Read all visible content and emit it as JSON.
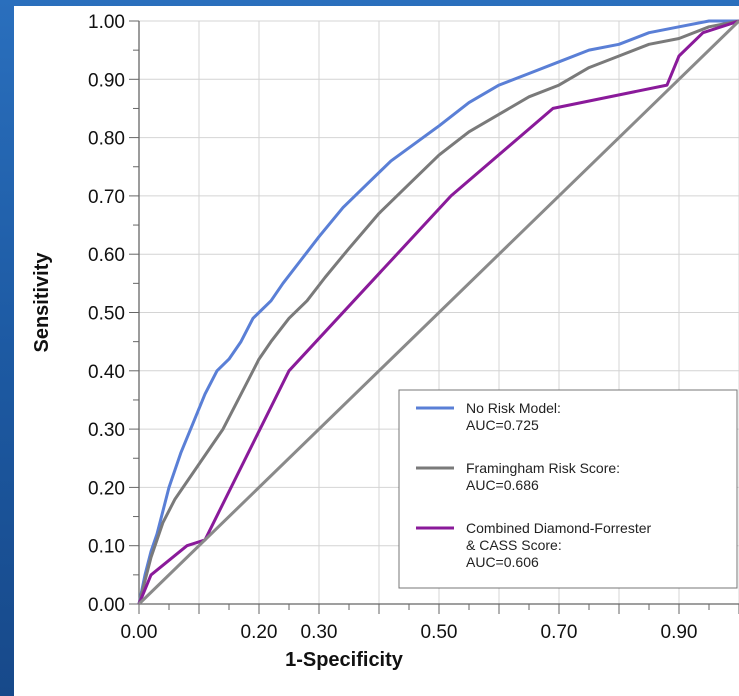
{
  "chart_data": {
    "type": "line",
    "xlabel": "1-Specificity",
    "ylabel": "Sensitivity",
    "xlim": [
      0,
      1
    ],
    "ylim": [
      0,
      1
    ],
    "x_tick_labels": [
      {
        "x": 0.0,
        "label": "0.00"
      },
      {
        "x": 0.2,
        "label": "0.20"
      },
      {
        "x": 0.3,
        "label": "0.30"
      },
      {
        "x": 0.5,
        "label": "0.50"
      },
      {
        "x": 0.7,
        "label": "0.70"
      },
      {
        "x": 0.9,
        "label": "0.90"
      }
    ],
    "y_tick_labels": [
      {
        "y": 0.0,
        "label": "0.00"
      },
      {
        "y": 0.1,
        "label": "0.10"
      },
      {
        "y": 0.2,
        "label": "0.20"
      },
      {
        "y": 0.3,
        "label": "0.30"
      },
      {
        "y": 0.4,
        "label": "0.40"
      },
      {
        "y": 0.5,
        "label": "0.50"
      },
      {
        "y": 0.6,
        "label": "0.60"
      },
      {
        "y": 0.7,
        "label": "0.70"
      },
      {
        "y": 0.8,
        "label": "0.80"
      },
      {
        "y": 0.9,
        "label": "0.90"
      },
      {
        "y": 1.0,
        "label": "1.00"
      }
    ],
    "grid": true,
    "legend_position": "bottom-right",
    "series": [
      {
        "name": "No Risk Model: AUC=0.725",
        "legend_lines": [
          "No Risk Model:",
          "AUC=0.725"
        ],
        "color": "#5a7fd6",
        "x": [
          0,
          0.01,
          0.02,
          0.03,
          0.05,
          0.07,
          0.09,
          0.11,
          0.13,
          0.15,
          0.17,
          0.19,
          0.2,
          0.22,
          0.24,
          0.27,
          0.3,
          0.34,
          0.38,
          0.42,
          0.46,
          0.5,
          0.55,
          0.6,
          0.65,
          0.7,
          0.75,
          0.8,
          0.85,
          0.9,
          0.95,
          1.0
        ],
        "y": [
          0,
          0.05,
          0.09,
          0.12,
          0.2,
          0.26,
          0.31,
          0.36,
          0.4,
          0.42,
          0.45,
          0.49,
          0.5,
          0.52,
          0.55,
          0.59,
          0.63,
          0.68,
          0.72,
          0.76,
          0.79,
          0.82,
          0.86,
          0.89,
          0.91,
          0.93,
          0.95,
          0.96,
          0.98,
          0.99,
          1.0,
          1.0
        ]
      },
      {
        "name": "Framingham Risk Score: AUC=0.686",
        "legend_lines": [
          "Framingham Risk Score:",
          "AUC=0.686"
        ],
        "color": "#7a7a7a",
        "x": [
          0,
          0.02,
          0.04,
          0.06,
          0.08,
          0.1,
          0.12,
          0.14,
          0.16,
          0.18,
          0.2,
          0.22,
          0.25,
          0.28,
          0.31,
          0.35,
          0.4,
          0.45,
          0.5,
          0.55,
          0.6,
          0.65,
          0.7,
          0.75,
          0.8,
          0.85,
          0.9,
          0.95,
          1.0
        ],
        "y": [
          0,
          0.08,
          0.14,
          0.18,
          0.21,
          0.24,
          0.27,
          0.3,
          0.34,
          0.38,
          0.42,
          0.45,
          0.49,
          0.52,
          0.56,
          0.61,
          0.67,
          0.72,
          0.77,
          0.81,
          0.84,
          0.87,
          0.89,
          0.92,
          0.94,
          0.96,
          0.97,
          0.99,
          1.0
        ]
      },
      {
        "name": "Combined Diamond-Forrester & CASS Score: AUC=0.606",
        "legend_lines": [
          "Combined Diamond-Forrester",
          "& CASS Score:",
          "AUC=0.606"
        ],
        "color": "#8a1a9a",
        "x": [
          0,
          0.02,
          0.08,
          0.11,
          0.25,
          0.52,
          0.69,
          0.88,
          0.9,
          0.94,
          1.0
        ],
        "y": [
          0,
          0.05,
          0.1,
          0.11,
          0.4,
          0.7,
          0.85,
          0.89,
          0.94,
          0.98,
          1.0
        ]
      },
      {
        "name": "Reference",
        "color": "#8a8a8a",
        "x": [
          0,
          1
        ],
        "y": [
          0,
          1
        ]
      }
    ]
  }
}
